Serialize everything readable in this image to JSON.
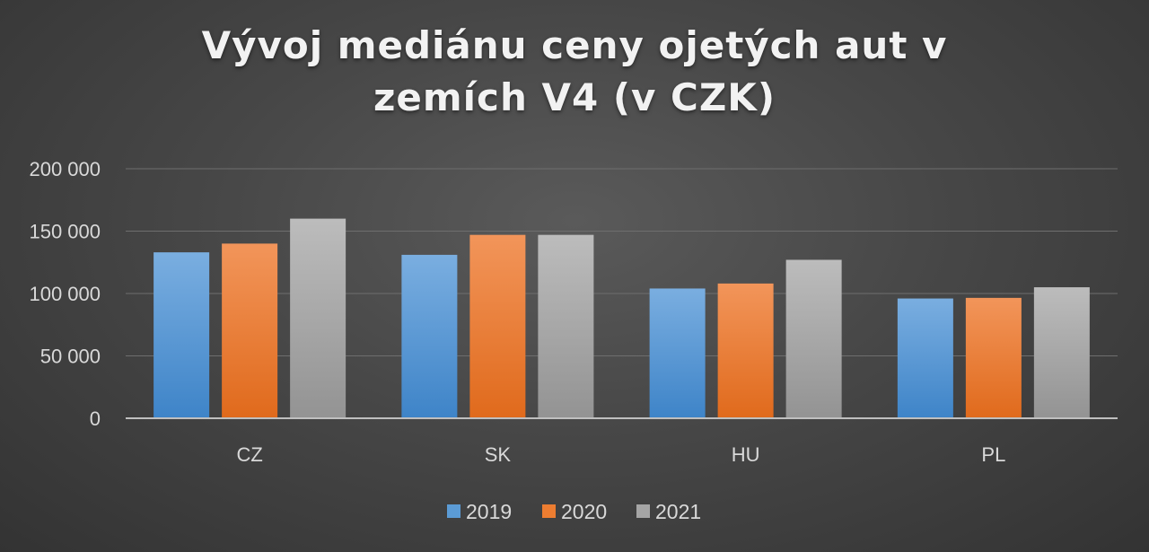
{
  "chart_data": {
    "type": "bar",
    "title": "Vývoj mediánu ceny ojetých aut v zemích V4 (v CZK)",
    "title_lines": [
      "Vývoj mediánu ceny ojetých aut v",
      "zemích V4 (v CZK)"
    ],
    "categories": [
      "CZ",
      "SK",
      "HU",
      "PL"
    ],
    "series": [
      {
        "name": "2019",
        "values": [
          133000,
          131000,
          104000,
          96000
        ],
        "color": "#5b9bd5"
      },
      {
        "name": "2020",
        "values": [
          140000,
          147000,
          108000,
          96500
        ],
        "color": "#ed7d31"
      },
      {
        "name": "2021",
        "values": [
          160000,
          147000,
          127000,
          105000
        ],
        "color": "#a5a5a5"
      }
    ],
    "ylim": [
      0,
      200000
    ],
    "yticks": [
      0,
      50000,
      100000,
      150000,
      200000
    ],
    "ytick_labels": [
      "0",
      "50 000",
      "100 000",
      "150 000",
      "200 000"
    ],
    "grid": true,
    "legend": "bottom",
    "xlabel": "",
    "ylabel": ""
  }
}
